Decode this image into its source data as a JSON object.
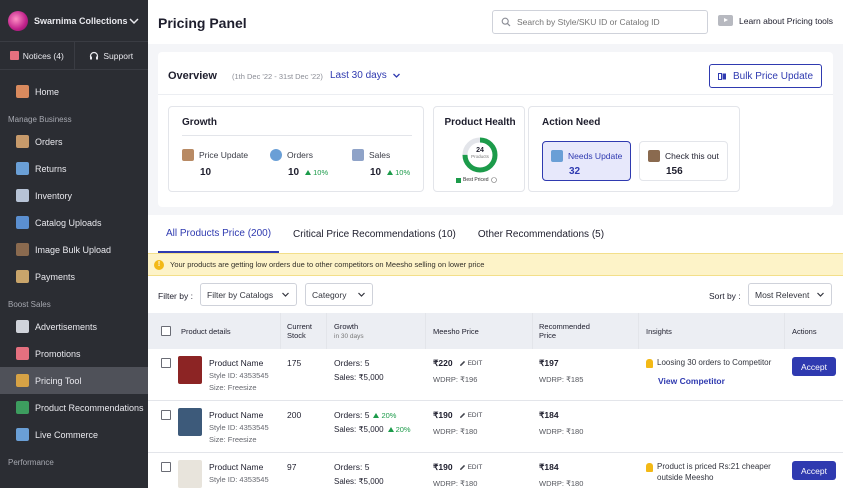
{
  "sidebar": {
    "brand": "Swarnima Collections",
    "notices": "Notices (4)",
    "support": "Support",
    "home": "Home",
    "sections": {
      "manage": "Manage Business",
      "boost": "Boost Sales",
      "performance": "Performance"
    },
    "manage_items": [
      {
        "label": "Orders",
        "color": "#c79a6b"
      },
      {
        "label": "Returns",
        "color": "#6a9fd6"
      },
      {
        "label": "Inventory",
        "color": "#b7c3d6"
      },
      {
        "label": "Catalog Uploads",
        "color": "#5b8fd0"
      },
      {
        "label": "Image Bulk Upload",
        "color": "#8a6a4f"
      },
      {
        "label": "Payments",
        "color": "#c9a56b"
      }
    ],
    "boost_items": [
      {
        "label": "Advertisements",
        "color": "#d0d3da"
      },
      {
        "label": "Promotions",
        "color": "#e5707f"
      },
      {
        "label": "Pricing Tool",
        "color": "#d6a245"
      },
      {
        "label": "Product Recommendations",
        "color": "#3d9d5f"
      },
      {
        "label": "Live Commerce",
        "color": "#6a9fd6"
      }
    ]
  },
  "header": {
    "title": "Pricing Panel",
    "search_placeholder": "Search by Style/SKU ID or Catalog ID",
    "learn": "Learn about Pricing tools"
  },
  "overview": {
    "title": "Overview",
    "range": "(1th Dec '22 - 31st Dec '22)",
    "period": "Last 30 days",
    "bulk_button": "Bulk Price Update",
    "growth": {
      "title": "Growth",
      "price_update_label": "Price Update",
      "price_update_value": "10",
      "orders_label": "Orders",
      "orders_value": "10",
      "orders_trend": "10%",
      "sales_label": "Sales",
      "sales_value": "10",
      "sales_trend": "10%"
    },
    "health": {
      "title": "Product Health",
      "count": "24",
      "unit": "Products",
      "legend": "Best Priced",
      "fraction": 0.75
    },
    "action": {
      "title": "Action Need",
      "needs_update_label": "Needs Update",
      "needs_update_value": "32",
      "check_label": "Check this out",
      "check_value": "156"
    }
  },
  "tabs": [
    "All Products Price (200)",
    "Critical Price Recommendations (10)",
    "Other Recommendations (5)"
  ],
  "alert": "Your products are getting low orders due to other competitors on Meesho selling on lower price",
  "filters": {
    "filter_by": "Filter by :",
    "catalogs": "Filter by Catalogs",
    "category": "Category",
    "sort_by": "Sort by :",
    "sort_value": "Most Relevent"
  },
  "table": {
    "headers": {
      "product": "Product details",
      "stock": "Current Stock",
      "growth": "Growth",
      "growth_sub": "in 30 days",
      "meesho": "Meesho Price",
      "recommended": "Recommended Price",
      "insights": "Insights",
      "actions": "Actions"
    },
    "edit": "EDIT",
    "accept": "Accept",
    "view_competitor": "View Competitor",
    "rows": [
      {
        "name": "Product Name",
        "style": "Style ID: 4353545",
        "size": "Size: Freesize",
        "stock": "175",
        "orders": "Orders: 5",
        "sales": "Sales: ₹5,000",
        "price": "₹220",
        "wdrp": "WDRP: ₹196",
        "rec": "₹197",
        "rec_wdrp": "WDRP: ₹185",
        "insight": "Loosing 30 orders to Competitor",
        "thumb": "#8c2424"
      },
      {
        "name": "Product Name",
        "style": "Style ID: 4353545",
        "size": "Size: Freesize",
        "stock": "200",
        "orders": "Orders: 5",
        "orders_trend": "20%",
        "sales": "Sales: ₹5,000",
        "sales_trend": "20%",
        "price": "₹190",
        "wdrp": "WDRP: ₹180",
        "rec": "₹184",
        "rec_wdrp": "WDRP: ₹180",
        "thumb": "#3d5a7a"
      },
      {
        "name": "Product Name",
        "style": "Style ID: 4353545",
        "stock": "97",
        "orders": "Orders: 5",
        "sales": "Sales: ₹5,000",
        "price": "₹190",
        "wdrp": "WDRP: ₹180",
        "rec": "₹184",
        "rec_wdrp": "WDRP: ₹180",
        "insight": "Product is priced Rs:21 cheaper outside Meesho",
        "thumb": "#e8e4dc"
      }
    ]
  }
}
